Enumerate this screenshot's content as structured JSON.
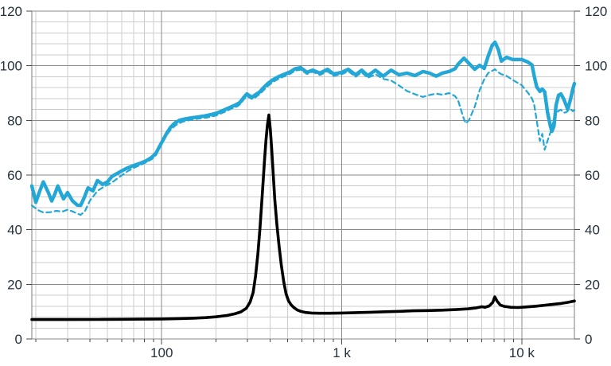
{
  "chart_data": {
    "type": "line",
    "title": "",
    "legend": "none",
    "grid": "on",
    "colors": {
      "background": "#ffffff",
      "grid_minor": "#cccccc",
      "grid_major": "#8a8a8a",
      "border": "#7d7d7d",
      "tick": "#4a4a4a",
      "text": "#24313d",
      "response": "#22a7d6",
      "impedance": "#000000"
    },
    "x_axis": {
      "scale": "log",
      "min": 19,
      "max": 19600,
      "major_gridlines": [
        100,
        1000,
        10000
      ],
      "minor_gridlines": [
        20,
        30,
        40,
        50,
        60,
        70,
        80,
        90,
        200,
        300,
        400,
        500,
        600,
        700,
        800,
        900,
        2000,
        3000,
        4000,
        5000,
        6000,
        7000,
        8000,
        9000
      ],
      "tick_labels": [
        {
          "value": 100,
          "label": "100"
        },
        {
          "value": 1000,
          "label": "1 k"
        },
        {
          "value": 10000,
          "label": "10 k"
        }
      ]
    },
    "y_axis": {
      "min": 0,
      "max": 120,
      "major_step": 20,
      "minor_step": 4,
      "tick_labels": [
        {
          "value": 0,
          "label": "0"
        },
        {
          "value": 20,
          "label": "20"
        },
        {
          "value": 40,
          "label": "40"
        },
        {
          "value": 60,
          "label": "60"
        },
        {
          "value": 80,
          "label": "80"
        },
        {
          "value": 100,
          "label": "100"
        },
        {
          "value": 120,
          "label": "120"
        }
      ],
      "label_sides": [
        "left",
        "right"
      ]
    },
    "series": [
      {
        "name": "response-dashed",
        "color_ref": "response",
        "line_style": "dashed",
        "stroke_width": 2.2,
        "points": [
          [
            19,
            48.9
          ],
          [
            20.5,
            47.2
          ],
          [
            22,
            46.3
          ],
          [
            24,
            46.4
          ],
          [
            26,
            46.9
          ],
          [
            28,
            46.6
          ],
          [
            30,
            47.3
          ],
          [
            32,
            46.7
          ],
          [
            34,
            45.9
          ],
          [
            35.5,
            45.4
          ],
          [
            37.5,
            46.8
          ],
          [
            40,
            50.7
          ],
          [
            44,
            54.2
          ],
          [
            48,
            55.8
          ],
          [
            53,
            57.3
          ],
          [
            58,
            59.2
          ],
          [
            65,
            61.5
          ],
          [
            72,
            63
          ],
          [
            80,
            64.3
          ],
          [
            88,
            65.8
          ],
          [
            93,
            67.3
          ],
          [
            97,
            69.6
          ],
          [
            102,
            72.3
          ],
          [
            107,
            74.8
          ],
          [
            113,
            76.8
          ],
          [
            120,
            78.3
          ],
          [
            130,
            79.5
          ],
          [
            145,
            80.2
          ],
          [
            162,
            80.7
          ],
          [
            180,
            81.1
          ],
          [
            200,
            81.8
          ],
          [
            222,
            83
          ],
          [
            242,
            84.2
          ],
          [
            262,
            85.1
          ],
          [
            274,
            86
          ],
          [
            286,
            87.7
          ],
          [
            298,
            88.9
          ],
          [
            310,
            88.2
          ],
          [
            320,
            87.8
          ],
          [
            334,
            88.6
          ],
          [
            352,
            89.7
          ],
          [
            370,
            91.2
          ],
          [
            392,
            92.8
          ],
          [
            418,
            94.2
          ],
          [
            448,
            95.3
          ],
          [
            482,
            96.2
          ],
          [
            516,
            97
          ],
          [
            551,
            98.2
          ],
          [
            592,
            98.6
          ],
          [
            641,
            97
          ],
          [
            689,
            97.8
          ],
          [
            757,
            96.6
          ],
          [
            834,
            98
          ],
          [
            901,
            96.3
          ],
          [
            1002,
            96.9
          ],
          [
            1087,
            98
          ],
          [
            1194,
            96
          ],
          [
            1291,
            97.6
          ],
          [
            1395,
            95.6
          ],
          [
            1541,
            96.9
          ],
          [
            1700,
            95.2
          ],
          [
            1878,
            94.6
          ],
          [
            2080,
            92.8
          ],
          [
            2300,
            90.8
          ],
          [
            2550,
            89.6
          ],
          [
            2820,
            88.6
          ],
          [
            3070,
            89.3
          ],
          [
            3350,
            89.8
          ],
          [
            3620,
            89.4
          ],
          [
            3950,
            90
          ],
          [
            4260,
            88.9
          ],
          [
            4420,
            87.5
          ],
          [
            4770,
            80.5
          ],
          [
            4900,
            78.9
          ],
          [
            5100,
            80.2
          ],
          [
            5480,
            85
          ],
          [
            5830,
            91
          ],
          [
            6180,
            95
          ],
          [
            6520,
            97.4
          ],
          [
            7100,
            98.7
          ],
          [
            7400,
            97.6
          ],
          [
            7700,
            96.9
          ],
          [
            8230,
            96.3
          ],
          [
            8900,
            94.8
          ],
          [
            9980,
            92.9
          ],
          [
            10800,
            90.2
          ],
          [
            11400,
            88
          ],
          [
            11700,
            86
          ],
          [
            12100,
            80
          ],
          [
            12600,
            72.5
          ],
          [
            13000,
            75.1
          ],
          [
            13400,
            69.3
          ],
          [
            13900,
            72.5
          ],
          [
            14400,
            75.5
          ],
          [
            14700,
            77.5
          ],
          [
            15100,
            80.5
          ],
          [
            15500,
            82.5
          ],
          [
            16000,
            83.5
          ],
          [
            16500,
            83.9
          ],
          [
            17100,
            82.8
          ],
          [
            17700,
            83
          ],
          [
            18000,
            83.5
          ],
          [
            18600,
            84.2
          ],
          [
            19200,
            83.4
          ],
          [
            19600,
            83.8
          ]
        ]
      },
      {
        "name": "response-solid",
        "color_ref": "response",
        "line_style": "solid",
        "stroke_width": 4.4,
        "points": [
          [
            19,
            56
          ],
          [
            20,
            50
          ],
          [
            21,
            54
          ],
          [
            22,
            57.5
          ],
          [
            23.5,
            53.5
          ],
          [
            24.5,
            50.5
          ],
          [
            25.5,
            53
          ],
          [
            26.5,
            56
          ],
          [
            27.5,
            53.5
          ],
          [
            28.5,
            51.3
          ],
          [
            30,
            53.6
          ],
          [
            32,
            50.5
          ],
          [
            34,
            49
          ],
          [
            35.5,
            48.9
          ],
          [
            37,
            51.5
          ],
          [
            39,
            55.3
          ],
          [
            41.5,
            54.2
          ],
          [
            44,
            58
          ],
          [
            47,
            56.6
          ],
          [
            50,
            57.5
          ],
          [
            53,
            59.5
          ],
          [
            58,
            61
          ],
          [
            64,
            62.5
          ],
          [
            70,
            63.5
          ],
          [
            76,
            64.3
          ],
          [
            82,
            65.2
          ],
          [
            88,
            66.5
          ],
          [
            93,
            68
          ],
          [
            97,
            70.3
          ],
          [
            102,
            73
          ],
          [
            107,
            75.5
          ],
          [
            112,
            77.5
          ],
          [
            118,
            79
          ],
          [
            126,
            80.1
          ],
          [
            136,
            80.6
          ],
          [
            148,
            81
          ],
          [
            160,
            81.3
          ],
          [
            175,
            81.7
          ],
          [
            190,
            82.2
          ],
          [
            205,
            82.8
          ],
          [
            222,
            83.8
          ],
          [
            242,
            84.9
          ],
          [
            260,
            85.8
          ],
          [
            272,
            86.6
          ],
          [
            284,
            88.2
          ],
          [
            297,
            89.7
          ],
          [
            308,
            89
          ],
          [
            318,
            88.5
          ],
          [
            330,
            89.3
          ],
          [
            350,
            90.4
          ],
          [
            368,
            92
          ],
          [
            390,
            93.6
          ],
          [
            415,
            94.9
          ],
          [
            445,
            96
          ],
          [
            480,
            96.9
          ],
          [
            515,
            97.7
          ],
          [
            551,
            98.9
          ],
          [
            592,
            99.3
          ],
          [
            641,
            97.6
          ],
          [
            689,
            98.4
          ],
          [
            757,
            97.3
          ],
          [
            834,
            98.7
          ],
          [
            901,
            97
          ],
          [
            1002,
            97.6
          ],
          [
            1087,
            98.7
          ],
          [
            1194,
            96.7
          ],
          [
            1291,
            98.4
          ],
          [
            1395,
            96.4
          ],
          [
            1541,
            98.4
          ],
          [
            1700,
            96.2
          ],
          [
            1878,
            98.4
          ],
          [
            2080,
            96.7
          ],
          [
            2303,
            97.3
          ],
          [
            2551,
            96.4
          ],
          [
            2825,
            97.9
          ],
          [
            3071,
            97.3
          ],
          [
            3352,
            96.2
          ],
          [
            3620,
            97.3
          ],
          [
            3949,
            97.9
          ],
          [
            4260,
            98.9
          ],
          [
            4420,
            100.5
          ],
          [
            4770,
            102.8
          ],
          [
            5100,
            100.8
          ],
          [
            5480,
            98.7
          ],
          [
            5830,
            100.2
          ],
          [
            6180,
            99
          ],
          [
            6520,
            103.7
          ],
          [
            6850,
            107.5
          ],
          [
            7100,
            108.6
          ],
          [
            7400,
            106
          ],
          [
            7700,
            101.7
          ],
          [
            8230,
            103.1
          ],
          [
            8900,
            102.3
          ],
          [
            9980,
            102.3
          ],
          [
            10800,
            101.4
          ],
          [
            11400,
            100.3
          ],
          [
            11700,
            96.5
          ],
          [
            12100,
            92.3
          ],
          [
            12600,
            90.6
          ],
          [
            13000,
            91.5
          ],
          [
            13400,
            90.5
          ],
          [
            13900,
            83
          ],
          [
            14400,
            78
          ],
          [
            14700,
            76
          ],
          [
            15100,
            78
          ],
          [
            15500,
            85.5
          ],
          [
            16000,
            89.2
          ],
          [
            16500,
            89.7
          ],
          [
            17100,
            87.8
          ],
          [
            17700,
            85.3
          ],
          [
            18000,
            84
          ],
          [
            18600,
            87.5
          ],
          [
            19200,
            91.5
          ],
          [
            19600,
            93.5
          ]
        ]
      },
      {
        "name": "impedance",
        "color_ref": "impedance",
        "line_style": "solid",
        "stroke_width": 3.6,
        "points": [
          [
            19,
            7.1
          ],
          [
            30,
            7.1
          ],
          [
            45,
            7.15
          ],
          [
            60,
            7.2
          ],
          [
            80,
            7.25
          ],
          [
            100,
            7.3
          ],
          [
            125,
            7.45
          ],
          [
            150,
            7.6
          ],
          [
            175,
            7.8
          ],
          [
            200,
            8.1
          ],
          [
            230,
            8.6
          ],
          [
            255,
            9.2
          ],
          [
            275,
            9.9
          ],
          [
            295,
            11.2
          ],
          [
            310,
            13.5
          ],
          [
            322,
            17
          ],
          [
            332,
            23
          ],
          [
            342,
            31
          ],
          [
            352,
            41
          ],
          [
            362,
            53
          ],
          [
            372,
            65
          ],
          [
            380,
            73
          ],
          [
            387,
            78.5
          ],
          [
            394,
            82
          ],
          [
            401,
            77
          ],
          [
            408,
            70
          ],
          [
            416,
            61
          ],
          [
            425,
            51
          ],
          [
            436,
            42
          ],
          [
            449,
            34
          ],
          [
            462,
            27
          ],
          [
            476,
            21
          ],
          [
            491,
            16.5
          ],
          [
            506,
            14
          ],
          [
            522,
            12.6
          ],
          [
            542,
            11.5
          ],
          [
            566,
            10.6
          ],
          [
            592,
            10.1
          ],
          [
            630,
            9.7
          ],
          [
            680,
            9.5
          ],
          [
            750,
            9.4
          ],
          [
            850,
            9.4
          ],
          [
            1000,
            9.5
          ],
          [
            1200,
            9.65
          ],
          [
            1450,
            9.8
          ],
          [
            1750,
            9.95
          ],
          [
            2100,
            10.1
          ],
          [
            2500,
            10.3
          ],
          [
            3000,
            10.4
          ],
          [
            3600,
            10.55
          ],
          [
            4300,
            10.75
          ],
          [
            5000,
            11
          ],
          [
            5600,
            11.4
          ],
          [
            6000,
            11.8
          ],
          [
            6250,
            11.6
          ],
          [
            6600,
            12.1
          ],
          [
            6900,
            13.4
          ],
          [
            7080,
            15.4
          ],
          [
            7300,
            13.8
          ],
          [
            7600,
            12.4
          ],
          [
            8000,
            11.9
          ],
          [
            8700,
            11.6
          ],
          [
            9500,
            11.5
          ],
          [
            10500,
            11.7
          ],
          [
            12000,
            12
          ],
          [
            13500,
            12.35
          ],
          [
            15000,
            12.7
          ],
          [
            16500,
            13
          ],
          [
            18000,
            13.4
          ],
          [
            19600,
            13.9
          ]
        ]
      }
    ]
  }
}
